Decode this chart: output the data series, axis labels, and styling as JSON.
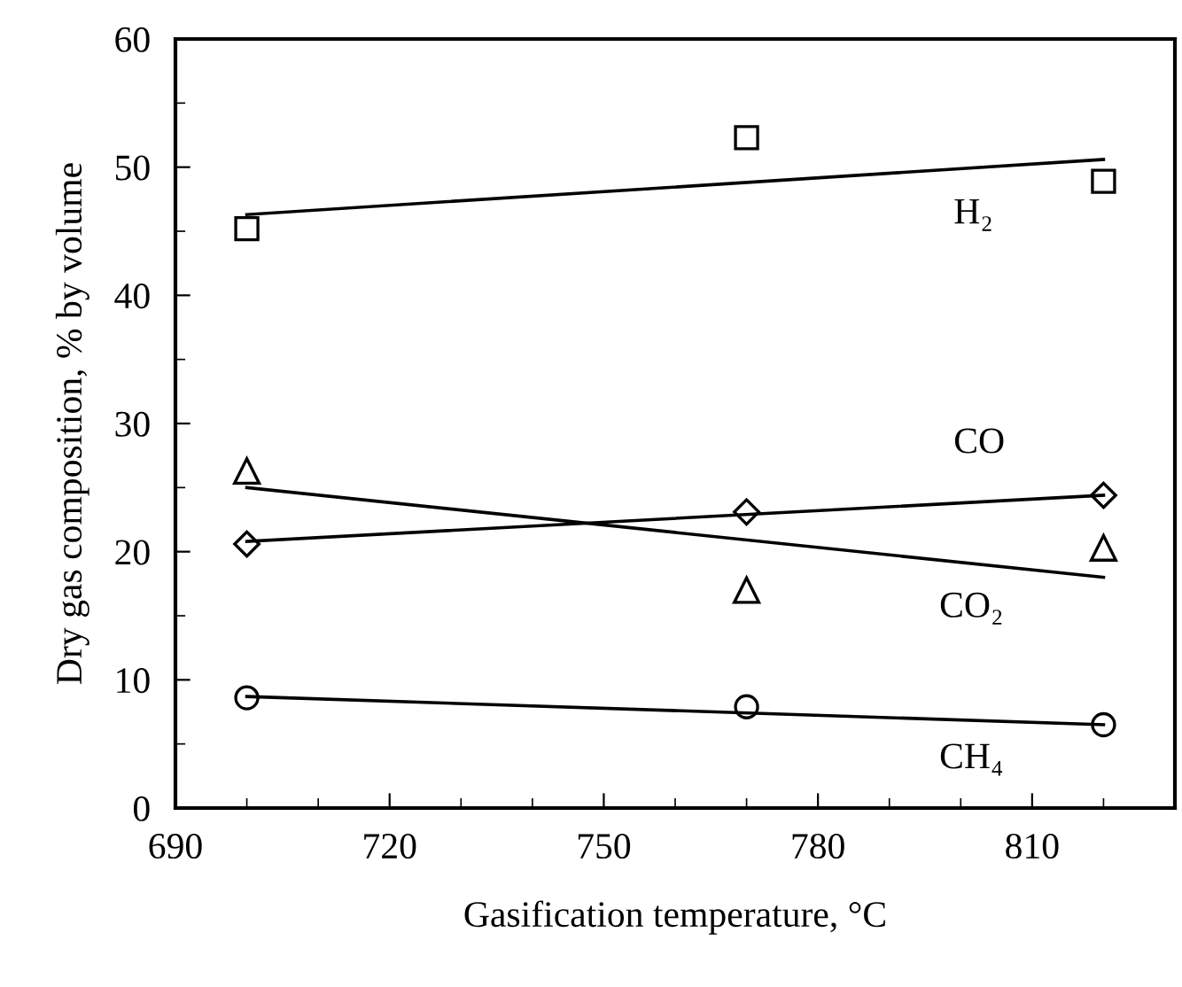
{
  "chart_data": {
    "type": "scatter",
    "xlabel": "Gasification temperature, °C",
    "ylabel": "Dry gas composition, % by volume",
    "xlim": [
      690,
      830
    ],
    "xticks": [
      690,
      720,
      750,
      780,
      810
    ],
    "ylim": [
      0,
      60
    ],
    "yticks": [
      0,
      10,
      20,
      30,
      40,
      50,
      60
    ],
    "grid": false,
    "legend": false,
    "series": [
      {
        "name": "H₂",
        "marker": "square",
        "color": "#000000",
        "x": [
          700,
          770,
          820
        ],
        "values": [
          45.2,
          52.3,
          48.9
        ]
      },
      {
        "name": "CO",
        "marker": "diamond",
        "color": "#000000",
        "x": [
          700,
          770,
          820
        ],
        "values": [
          20.6,
          23.1,
          24.4
        ]
      },
      {
        "name": "CO₂",
        "marker": "triangle",
        "color": "#000000",
        "x": [
          700,
          770,
          820
        ],
        "values": [
          26.3,
          17.0,
          20.3
        ]
      },
      {
        "name": "CH₄",
        "marker": "circle",
        "color": "#000000",
        "x": [
          700,
          770,
          820
        ],
        "values": [
          8.6,
          7.9,
          6.5
        ]
      },
      {
        "type": "line",
        "marker": "none",
        "line_style": "solid",
        "color": "#000000",
        "x": [
          700,
          820
        ],
        "values": [
          46.3,
          50.6
        ]
      },
      {
        "type": "line",
        "marker": "none",
        "line_style": "solid",
        "color": "#000000",
        "x": [
          700,
          820
        ],
        "values": [
          20.8,
          24.4
        ]
      },
      {
        "type": "line",
        "marker": "none",
        "line_style": "solid",
        "color": "#000000",
        "x": [
          700,
          820
        ],
        "values": [
          25.0,
          18.0
        ]
      },
      {
        "type": "line",
        "marker": "none",
        "line_style": "solid",
        "color": "#000000",
        "x": [
          700,
          820
        ],
        "values": [
          8.7,
          6.5
        ]
      }
    ]
  }
}
